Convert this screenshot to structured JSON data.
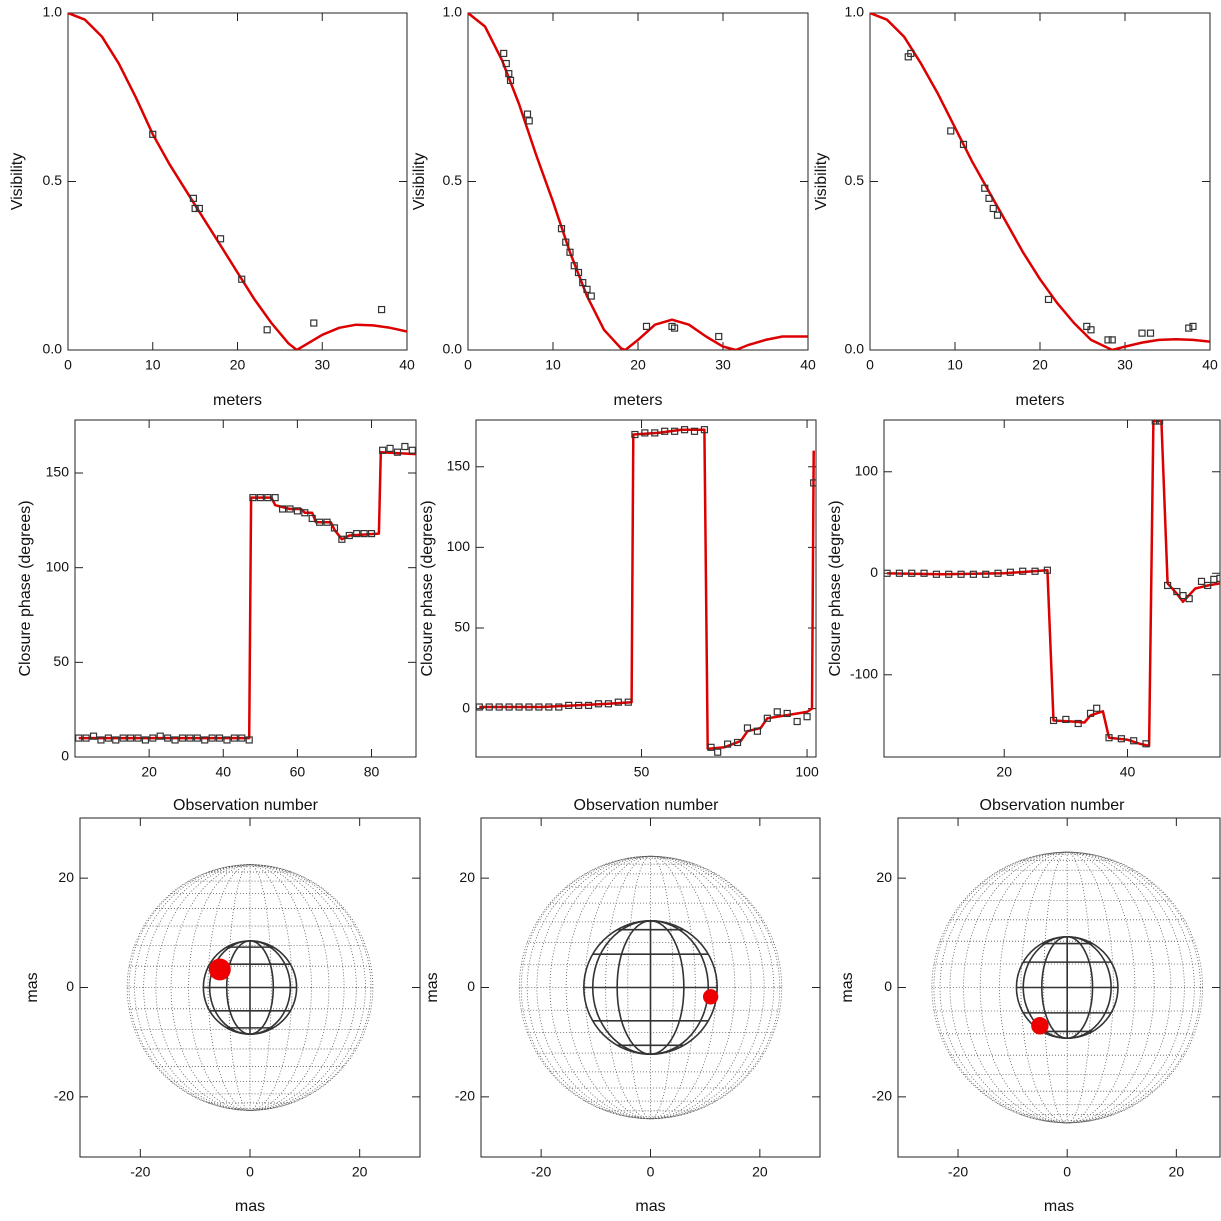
{
  "chart_data": [
    {
      "type": "line",
      "xlabel": "meters",
      "ylabel": "Visibility",
      "xlim": [
        0,
        40
      ],
      "ylim": [
        0,
        1
      ],
      "xticks": [
        0,
        10,
        20,
        30,
        40
      ],
      "yticks": [
        {
          "value": 0,
          "label": "0.0"
        },
        0.5,
        {
          "value": 1,
          "label": "1.0"
        }
      ],
      "series": [
        {
          "type": "line",
          "color": "#dd0000",
          "x": [
            0,
            2,
            4,
            6,
            8,
            10,
            12,
            14,
            16,
            18,
            20,
            22,
            24,
            26,
            27,
            28,
            30,
            32,
            34,
            36,
            38,
            40
          ],
          "values": [
            1,
            0.98,
            0.93,
            0.85,
            0.75,
            0.64,
            0.55,
            0.47,
            0.39,
            0.31,
            0.23,
            0.15,
            0.08,
            0.02,
            0,
            0.015,
            0.045,
            0.066,
            0.075,
            0.073,
            0.066,
            0.055
          ]
        },
        {
          "type": "scatter",
          "color": "#333333",
          "x": [
            10,
            14.8,
            15,
            15.5,
            18,
            20.5,
            23.5,
            29,
            37
          ],
          "values": [
            0.64,
            0.45,
            0.42,
            0.42,
            0.33,
            0.21,
            0.06,
            0.08,
            0.12
          ]
        }
      ]
    },
    {
      "type": "line",
      "xlabel": "meters",
      "ylabel": "Visibility",
      "xlim": [
        0,
        40
      ],
      "ylim": [
        0,
        1
      ],
      "xticks": [
        0,
        10,
        20,
        30,
        40
      ],
      "yticks": [
        {
          "value": 0,
          "label": "0.0"
        },
        0.5,
        {
          "value": 1,
          "label": "1.0"
        }
      ],
      "series": [
        {
          "type": "line",
          "color": "#dd0000",
          "x": [
            0,
            2,
            4,
            6,
            8,
            10,
            12,
            14,
            16,
            18,
            18.5,
            20,
            22,
            24,
            26,
            28,
            30,
            31.5,
            33,
            35,
            37,
            40
          ],
          "values": [
            1,
            0.96,
            0.86,
            0.73,
            0.58,
            0.44,
            0.29,
            0.16,
            0.06,
            0.005,
            0,
            0.03,
            0.075,
            0.09,
            0.075,
            0.04,
            0.01,
            0,
            0.015,
            0.03,
            0.04,
            0.04
          ]
        },
        {
          "type": "scatter",
          "color": "#333333",
          "x": [
            4.2,
            4.5,
            4.8,
            5,
            7,
            7.2,
            11,
            11.5,
            12,
            12.5,
            13,
            13.5,
            14,
            14.5,
            21,
            24,
            24.3,
            29.5
          ],
          "values": [
            0.88,
            0.85,
            0.82,
            0.8,
            0.7,
            0.68,
            0.36,
            0.32,
            0.29,
            0.25,
            0.23,
            0.2,
            0.18,
            0.16,
            0.07,
            0.07,
            0.065,
            0.04
          ]
        }
      ]
    },
    {
      "type": "line",
      "xlabel": "meters",
      "ylabel": "Visibility",
      "xlim": [
        0,
        40
      ],
      "ylim": [
        0,
        1
      ],
      "xticks": [
        0,
        10,
        20,
        30,
        40
      ],
      "yticks": [
        {
          "value": 0,
          "label": "0.0"
        },
        0.5,
        {
          "value": 1,
          "label": "1.0"
        }
      ],
      "series": [
        {
          "type": "line",
          "color": "#dd0000",
          "x": [
            0,
            2,
            4,
            6,
            8,
            10,
            12,
            14,
            16,
            18,
            20,
            22,
            24,
            26,
            28.5,
            30,
            32,
            34,
            36,
            38,
            40
          ],
          "values": [
            1,
            0.98,
            0.93,
            0.85,
            0.76,
            0.66,
            0.56,
            0.47,
            0.38,
            0.29,
            0.21,
            0.14,
            0.08,
            0.03,
            0,
            0.01,
            0.022,
            0.03,
            0.032,
            0.03,
            0.025
          ]
        },
        {
          "type": "scatter",
          "color": "#333333",
          "x": [
            4.5,
            4.8,
            9.5,
            11,
            13.5,
            14,
            14.5,
            15,
            21,
            25.5,
            26,
            28,
            28.5,
            32,
            33,
            37.5,
            38
          ],
          "values": [
            0.87,
            0.88,
            0.65,
            0.61,
            0.48,
            0.45,
            0.42,
            0.4,
            0.15,
            0.07,
            0.06,
            0.03,
            0.03,
            0.05,
            0.05,
            0.065,
            0.07
          ]
        }
      ]
    },
    {
      "type": "line",
      "xlabel": "Observation number",
      "ylabel": "Closure phase (degrees)",
      "xlim": [
        0,
        92
      ],
      "ylim": [
        0,
        178
      ],
      "xticks": [
        20,
        40,
        60,
        80
      ],
      "yticks": [
        0,
        50,
        100,
        150
      ],
      "series": [
        {
          "type": "line",
          "color": "#dd0000",
          "x": [
            1,
            10,
            20,
            30,
            40,
            47,
            47.5,
            53,
            54,
            58,
            61,
            62,
            64,
            65,
            69,
            70,
            72,
            74,
            82,
            82.5,
            92
          ],
          "values": [
            10,
            10,
            10,
            10,
            10,
            10,
            137,
            137,
            133,
            131,
            131,
            129,
            129,
            124,
            124,
            120,
            115,
            117,
            118,
            161,
            160
          ]
        },
        {
          "type": "scatter",
          "color": "#333333",
          "x": [
            1,
            3,
            5,
            7,
            9,
            11,
            13,
            15,
            17,
            19,
            21,
            23,
            25,
            27,
            29,
            31,
            33,
            35,
            37,
            39,
            41,
            43,
            45,
            47,
            48,
            50,
            52,
            54,
            56,
            58,
            60,
            62,
            64,
            66,
            68,
            70,
            72,
            74,
            76,
            78,
            80,
            83,
            85,
            87,
            89,
            91
          ],
          "values": [
            10,
            10,
            11,
            9,
            10,
            9,
            10,
            10,
            10,
            9,
            10,
            11,
            10,
            9,
            10,
            10,
            10,
            9,
            10,
            10,
            9,
            10,
            10,
            9,
            137,
            137,
            137,
            137,
            131,
            131,
            130,
            129,
            126,
            124,
            124,
            121,
            115,
            117,
            118,
            118,
            118,
            162,
            163,
            161,
            164,
            162
          ]
        }
      ]
    },
    {
      "type": "line",
      "xlabel": "Observation number",
      "ylabel": "Closure phase (degrees)",
      "xlim": [
        0,
        102.7
      ],
      "ylim": [
        -30,
        179
      ],
      "xticks": [
        50,
        100
      ],
      "yticks": [
        0,
        50,
        100,
        150
      ],
      "series": [
        {
          "type": "line",
          "color": "#dd0000",
          "x": [
            1,
            20,
            30,
            40,
            47,
            47.5,
            55,
            62,
            69,
            70,
            75,
            80,
            82,
            86,
            88,
            94,
            100,
            101.5,
            102
          ],
          "values": [
            1,
            1,
            2,
            3,
            4,
            170,
            171,
            173,
            173,
            -25,
            -24,
            -20,
            -14,
            -12,
            -6,
            -4,
            -2,
            0,
            160
          ]
        },
        {
          "type": "scatter",
          "color": "#333333",
          "x": [
            1,
            4,
            7,
            10,
            13,
            16,
            19,
            22,
            25,
            28,
            31,
            34,
            37,
            40,
            43,
            46,
            48,
            51,
            54,
            57,
            60,
            63,
            66,
            69,
            71,
            73,
            76,
            79,
            82,
            85,
            88,
            91,
            94,
            97,
            100,
            102
          ],
          "values": [
            1,
            1,
            1,
            1,
            1,
            1,
            1,
            1,
            1,
            2,
            2,
            2,
            3,
            3,
            4,
            4,
            170,
            171,
            171,
            172,
            172,
            173,
            172,
            173,
            -24,
            -27,
            -22,
            -21,
            -12,
            -14,
            -6,
            -2,
            -3,
            -8,
            -5,
            140
          ]
        }
      ]
    },
    {
      "type": "line",
      "xlabel": "Observation number",
      "ylabel": "Closure phase (degrees)",
      "xlim": [
        0.5,
        55
      ],
      "ylim": [
        -181,
        151
      ],
      "xticks": [
        20,
        40
      ],
      "yticks": [
        -100,
        0,
        100
      ],
      "series": [
        {
          "type": "line",
          "color": "#dd0000",
          "x": [
            1,
            10,
            20,
            27,
            28,
            31,
            33,
            34,
            36,
            37,
            40,
            42,
            43.5,
            44.2,
            45.5,
            46.5,
            48,
            49,
            51,
            53,
            55
          ],
          "values": [
            0,
            -1,
            0,
            3,
            -145,
            -146,
            -147,
            -140,
            -136,
            -162,
            -164,
            -168,
            -170,
            150,
            150,
            -10,
            -20,
            -28,
            -15,
            -12,
            -10
          ]
        },
        {
          "type": "scatter",
          "color": "#333333",
          "x": [
            1,
            3,
            5,
            7,
            9,
            11,
            13,
            15,
            17,
            19,
            21,
            23,
            25,
            27,
            28,
            30,
            32,
            34,
            35,
            37,
            39,
            41,
            43,
            44.5,
            45.2,
            46.5,
            48,
            49,
            50,
            52,
            53,
            54,
            55
          ],
          "values": [
            0,
            0,
            0,
            0,
            -1,
            -1,
            -1,
            -1,
            -1,
            0,
            1,
            2,
            2,
            3,
            -145,
            -144,
            -148,
            -138,
            -133,
            -162,
            -163,
            -165,
            -168,
            150,
            150,
            -12,
            -18,
            -22,
            -25,
            -8,
            -12,
            -6,
            -5
          ]
        }
      ]
    },
    {
      "type": "sphere",
      "xlabel": "mas",
      "ylabel": "mas",
      "xlim": [
        -31,
        31
      ],
      "ylim": [
        -31,
        31
      ],
      "xticks": [
        -20,
        0,
        20
      ],
      "yticks": [
        -20,
        0,
        20
      ],
      "spheres": [
        {
          "x": 0,
          "y": 0,
          "r": 22.4,
          "color": "#555555",
          "style": "dotted"
        },
        {
          "x": 0,
          "y": 0,
          "r": 8.5,
          "color": "#333333",
          "style": "solid"
        },
        {
          "x": -5.5,
          "y": 3.3,
          "r": 2,
          "color": "#ee0000",
          "style": "filled"
        }
      ]
    },
    {
      "type": "sphere",
      "xlabel": "mas",
      "ylabel": "mas",
      "xlim": [
        -31,
        31
      ],
      "ylim": [
        -31,
        31
      ],
      "xticks": [
        -20,
        0,
        20
      ],
      "yticks": [
        -20,
        0,
        20
      ],
      "spheres": [
        {
          "x": 0,
          "y": 0,
          "r": 24,
          "color": "#555555",
          "style": "dotted"
        },
        {
          "x": 0,
          "y": 0,
          "r": 12.2,
          "color": "#333333",
          "style": "solid"
        },
        {
          "x": 11,
          "y": -1.7,
          "r": 1.4,
          "color": "#ee0000",
          "style": "filled"
        }
      ]
    },
    {
      "type": "sphere",
      "xlabel": "mas",
      "ylabel": "mas",
      "xlim": [
        -31,
        28
      ],
      "ylim": [
        -31,
        31
      ],
      "xticks": [
        -20,
        0,
        20
      ],
      "yticks": [
        -20,
        0,
        20
      ],
      "spheres": [
        {
          "x": 0,
          "y": 0,
          "r": 24.8,
          "color": "#555555",
          "style": "dotted"
        },
        {
          "x": 0,
          "y": 0,
          "r": 9.3,
          "color": "#333333",
          "style": "solid"
        },
        {
          "x": -5,
          "y": -7,
          "r": 1.6,
          "color": "#ee0000",
          "style": "filled"
        }
      ]
    }
  ]
}
